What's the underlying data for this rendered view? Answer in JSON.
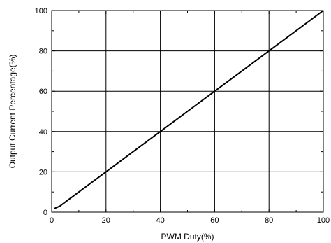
{
  "chart_data": {
    "type": "line",
    "xlabel": "PWM Duty(%)",
    "ylabel": "Output Current Percentage(%)",
    "xlim": [
      0,
      100
    ],
    "ylim": [
      0,
      100
    ],
    "x_ticks": [
      "0",
      "20",
      "40",
      "60",
      "80",
      "100"
    ],
    "y_ticks": [
      "0",
      "20",
      "40",
      "60",
      "80",
      "100"
    ],
    "grid": true,
    "series": [
      {
        "x": [
          1,
          3,
          5,
          10,
          20,
          30,
          40,
          50,
          60,
          70,
          80,
          90,
          100
        ],
        "y": [
          1.8,
          3,
          5,
          10,
          20,
          30,
          40,
          50,
          60,
          70,
          80,
          90,
          100
        ]
      }
    ]
  },
  "colors": {
    "line": "#000000",
    "grid": "#000000",
    "background": "#ffffff"
  }
}
